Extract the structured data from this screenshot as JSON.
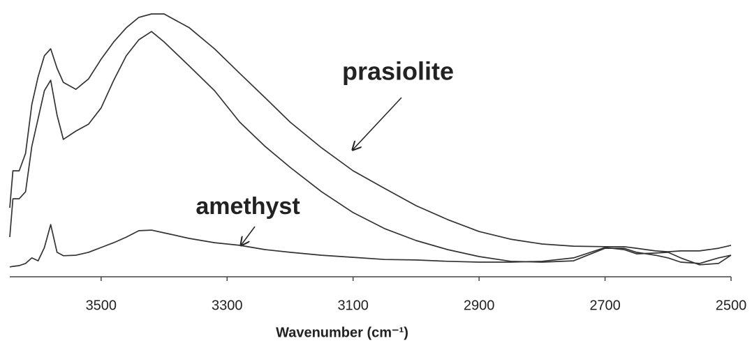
{
  "chart_data": {
    "type": "line",
    "x_label": "Wavenumber (cm⁻¹)",
    "annotations": [
      "prasiolite",
      "amethyst"
    ],
    "x": [
      3645,
      3640,
      3630,
      3620,
      3610,
      3600,
      3590,
      3580,
      3570,
      3560,
      3540,
      3520,
      3500,
      3480,
      3460,
      3440,
      3420,
      3400,
      3360,
      3320,
      3280,
      3240,
      3200,
      3150,
      3100,
      3050,
      3000,
      2950,
      2900,
      2850,
      2800,
      2750,
      2700,
      2670,
      2650,
      2620,
      2600,
      2580,
      2550,
      2520,
      2500
    ],
    "series": [
      {
        "color": "#333333",
        "values": [
          25.9,
          39.8,
          39.8,
          46.3,
          64.7,
          75.1,
          83.0,
          85.6,
          78.3,
          73.0,
          70.4,
          74.3,
          81.7,
          88.2,
          93.5,
          97.4,
          98.7,
          98.7,
          93.5,
          85.6,
          76.4,
          67.3,
          58.1,
          48.4,
          39.8,
          33.2,
          26.7,
          21.5,
          17.0,
          14.1,
          12.3,
          11.5,
          11.3,
          11.3,
          10.7,
          9.7,
          9.4,
          9.7,
          9.7,
          10.7,
          11.8
        ]
      },
      {
        "color": "#333333",
        "values": [
          14.9,
          29.3,
          29.3,
          31.9,
          49.0,
          59.4,
          69.9,
          73.8,
          60.7,
          51.6,
          54.7,
          57.3,
          63.4,
          73.8,
          83.0,
          89.0,
          92.1,
          88.2,
          79.1,
          69.9,
          58.1,
          49.0,
          41.1,
          31.9,
          24.1,
          18.1,
          13.6,
          10.2,
          7.6,
          5.8,
          5.5,
          6.0,
          10.7,
          10.7,
          9.2,
          8.1,
          7.1,
          5.5,
          5.0,
          7.1,
          8.1
        ]
      },
      {
        "color": "#333333",
        "values": [
          3.7,
          3.9,
          4.2,
          5.0,
          7.1,
          6.0,
          11.0,
          19.6,
          9.2,
          7.9,
          8.1,
          9.2,
          11.0,
          12.8,
          14.9,
          17.3,
          17.5,
          16.5,
          14.4,
          12.8,
          11.8,
          10.2,
          9.2,
          8.1,
          7.3,
          6.5,
          6.3,
          5.8,
          5.5,
          5.5,
          5.8,
          7.1,
          11.0,
          10.2,
          8.6,
          8.9,
          9.2,
          7.1,
          4.5,
          5.0,
          8.1
        ]
      }
    ],
    "xlim": [
      3645,
      2500
    ],
    "xticks": [
      3500,
      3300,
      3100,
      2900,
      2700,
      2500
    ],
    "ylim": [
      0,
      100
    ],
    "grid": false
  }
}
